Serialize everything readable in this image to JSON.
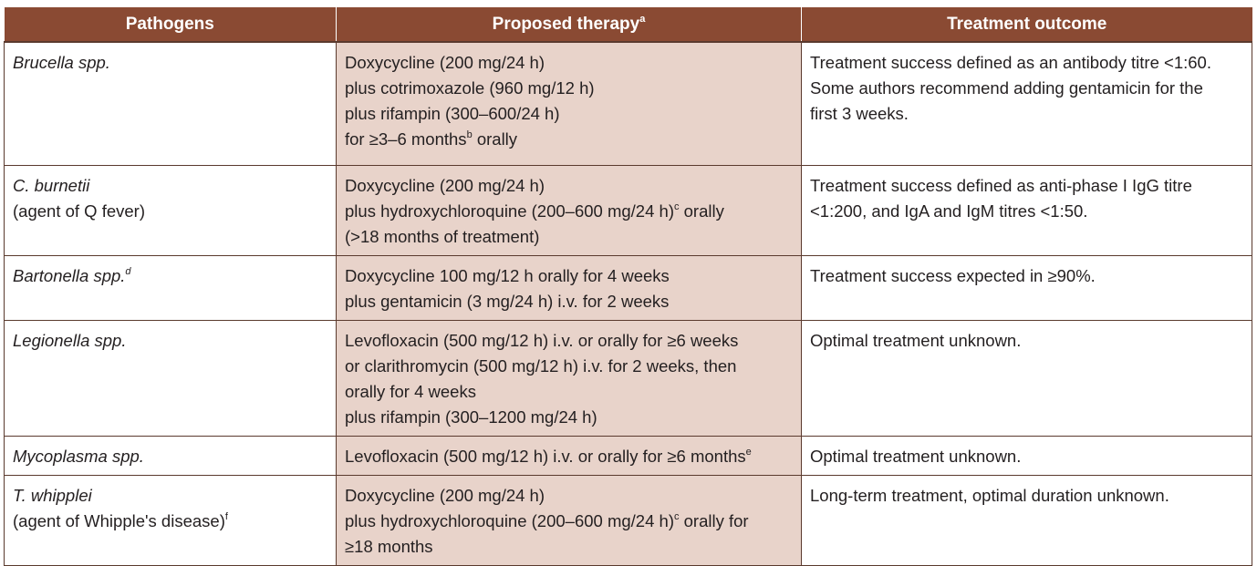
{
  "headers": {
    "pathogens": "Pathogens",
    "therapy": "Proposed therapy",
    "therapy_sup": "a",
    "outcome": "Treatment outcome"
  },
  "rows": [
    {
      "pathogen": [
        "Brucella spp."
      ],
      "pathogen_sup": "",
      "therapy": [
        "Doxycycline (200 mg/24 h)",
        "plus cotrimoxazole (960 mg/12 h)",
        "plus rifampin (300–600/24 h)",
        "for ≥3–6 months",
        " orally"
      ],
      "therapy_sup": "b",
      "outcome": [
        "Treatment success defined as an antibody titre <1:60.",
        "Some authors recommend adding gentamicin for the",
        "first 3 weeks."
      ]
    },
    {
      "pathogen": [
        "C. burnetii",
        "(agent of Q fever)"
      ],
      "therapy": [
        "Doxycycline (200 mg/24 h)",
        "plus hydroxychloroquine (200–600 mg/24 h)",
        " orally",
        "(>18 months of treatment)"
      ],
      "therapy_sup": "c",
      "outcome": [
        "Treatment success defined as anti-phase I IgG titre",
        "<1:200, and IgA and IgM titres <1:50."
      ]
    },
    {
      "pathogen": [
        "Bartonella spp."
      ],
      "pathogen_sup": "d",
      "therapy": [
        "Doxycycline 100 mg/12 h orally for 4 weeks",
        "plus gentamicin (3 mg/24 h) i.v. for 2 weeks"
      ],
      "outcome": [
        "Treatment success expected in ≥90%."
      ]
    },
    {
      "pathogen": [
        "Legionella spp."
      ],
      "therapy": [
        "Levofloxacin (500 mg/12 h) i.v. or orally for ≥6 weeks",
        "or clarithromycin (500 mg/12 h) i.v. for 2 weeks, then",
        "orally for 4 weeks",
        "plus rifampin (300–1200 mg/24 h)"
      ],
      "outcome": [
        "Optimal treatment unknown."
      ]
    },
    {
      "pathogen": [
        "Mycoplasma spp."
      ],
      "therapy": [
        "Levofloxacin (500 mg/12 h) i.v. or orally for ≥6 months"
      ],
      "therapy_sup": "e",
      "outcome": [
        "Optimal treatment unknown."
      ]
    },
    {
      "pathogen": [
        "T. whipplei",
        "(agent of Whipple's disease)"
      ],
      "pathogen_sup": "f",
      "therapy": [
        "Doxycycline (200 mg/24 h)",
        "plus hydroxychloroquine (200–600 mg/24 h)",
        " orally for",
        "≥18 months"
      ],
      "therapy_sup": "c",
      "outcome": [
        "Long-term treatment, optimal duration unknown."
      ]
    }
  ],
  "colors": {
    "header_bg": "#8a4a33",
    "therapy_bg": "#e8d3ca",
    "border": "#5a3a2e"
  }
}
